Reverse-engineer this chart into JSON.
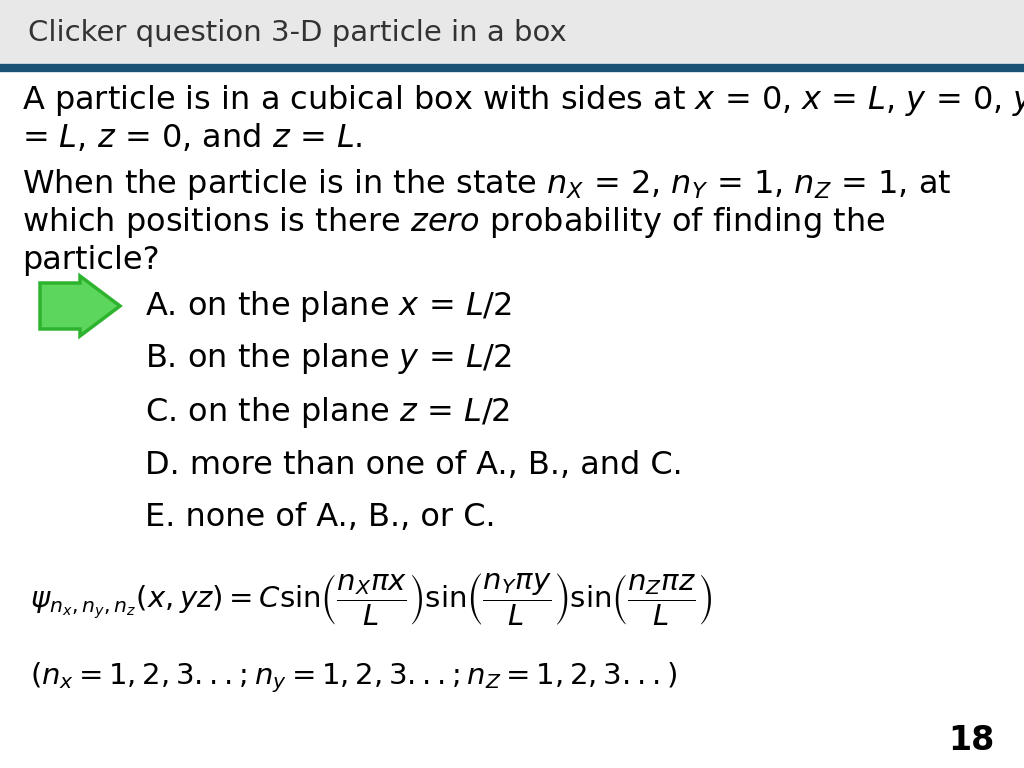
{
  "title": "Clicker question 3-D particle in a box",
  "title_color": "#333333",
  "title_bg": "#e8e8e8",
  "header_line_color": "#1a5276",
  "bg_color": "#ffffff",
  "text_color": "#000000",
  "page_number": "18",
  "arrow_fill": "#5cd65c",
  "arrow_edge": "#2db32d",
  "font_size_title": 21,
  "font_size_body": 23,
  "font_size_answer": 23,
  "font_size_formula": 21,
  "font_size_page": 24
}
